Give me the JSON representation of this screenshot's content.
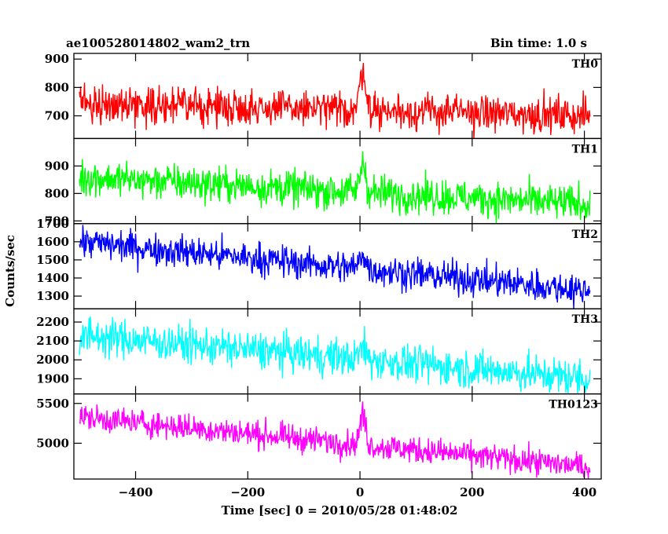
{
  "header": {
    "left_title": "ae100528014802_wam2_trn",
    "right_title": "Bin time: 1.0 s"
  },
  "chart_data": {
    "type": "line",
    "xlabel": "Time [sec] 0 = 2010/05/28 01:48:02",
    "ylabel": "Counts/sec",
    "xlim": [
      -510,
      430
    ],
    "x_ticks": [
      -400,
      -200,
      0,
      200,
      400
    ],
    "x_tick_labels": [
      "−400",
      "−200",
      "0",
      "200",
      "400"
    ],
    "x_start": -500,
    "x_end": 410,
    "bin_time": 1.0,
    "panels": [
      {
        "name": "TH0",
        "color": "#ff0000",
        "ylim": [
          620,
          920
        ],
        "y_ticks": [
          700,
          800,
          900
        ],
        "level_start": 745,
        "level_end": 700,
        "noise": 32,
        "peak_x": 5,
        "peak_height": 150,
        "peak_width": 5
      },
      {
        "name": "TH1",
        "color": "#00ff00",
        "ylim": [
          690,
          1000
        ],
        "y_ticks": [
          700,
          800,
          900
        ],
        "level_start": 860,
        "level_end": 760,
        "noise": 33,
        "peak_x": 5,
        "peak_height": 110,
        "peak_width": 5
      },
      {
        "name": "TH2",
        "color": "#0000ff",
        "ylim": [
          1230,
          1700
        ],
        "y_ticks": [
          1300,
          1400,
          1500,
          1600,
          1700
        ],
        "level_start": 1600,
        "level_end": 1330,
        "noise": 45,
        "peak_x": 5,
        "peak_height": 90,
        "peak_width": 5
      },
      {
        "name": "TH3",
        "color": "#00ffff",
        "ylim": [
          1820,
          2270
        ],
        "y_ticks": [
          1900,
          2000,
          2100,
          2200
        ],
        "level_start": 2130,
        "level_end": 1900,
        "noise": 50,
        "peak_x": 5,
        "peak_height": 60,
        "peak_width": 6
      },
      {
        "name": "TH0123",
        "color": "#ff00ff",
        "ylim": [
          4550,
          5620
        ],
        "y_ticks": [
          5000,
          5500
        ],
        "level_start": 5330,
        "level_end": 4700,
        "noise": 85,
        "peak_x": 5,
        "peak_height": 380,
        "peak_width": 5
      }
    ]
  }
}
